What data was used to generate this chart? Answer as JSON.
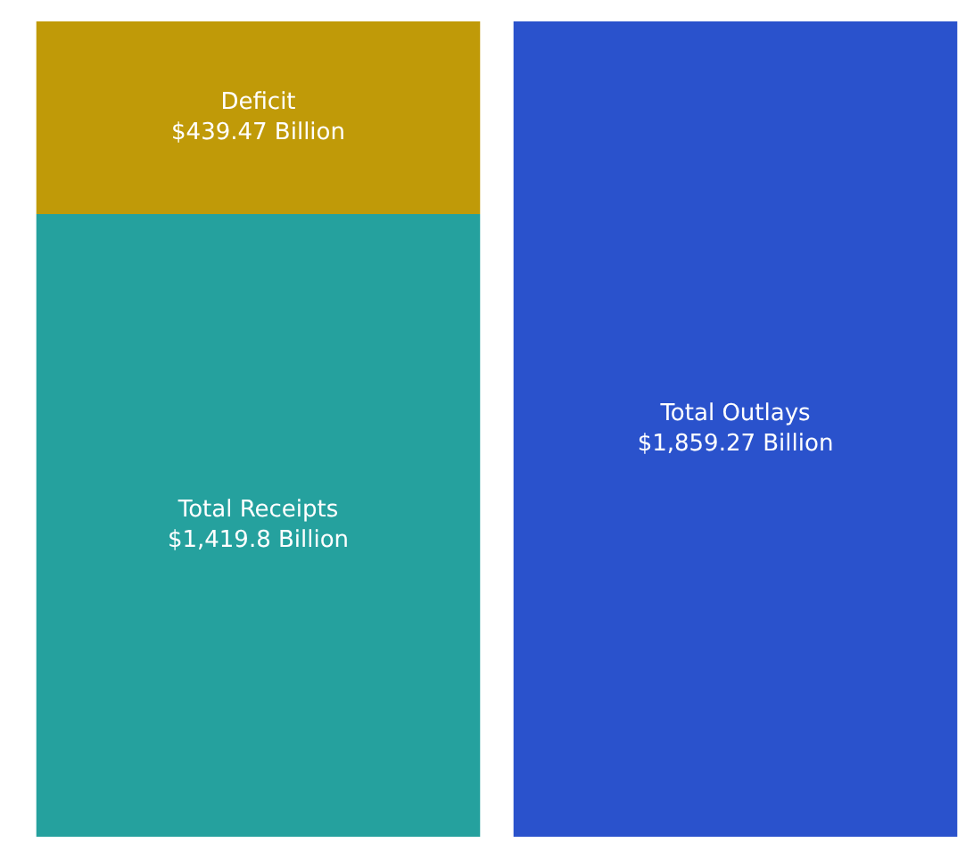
{
  "chart_data": {
    "type": "bar",
    "stacked": true,
    "categories": [
      null,
      null
    ],
    "series": [
      {
        "name": "Total Receipts",
        "color": "#25a19e",
        "values": [
          1419.8,
          null
        ],
        "value_labels": [
          "$1,419.8 Billion",
          null
        ]
      },
      {
        "name": "Deficit",
        "color": "#c09a08",
        "values": [
          439.47,
          null
        ],
        "value_labels": [
          "$439.47 Billion",
          null
        ]
      },
      {
        "name": "Total Outlays",
        "color": "#2a52cc",
        "values": [
          null,
          1859.27
        ],
        "value_labels": [
          null,
          "$1,859.27 Billion"
        ]
      }
    ]
  }
}
